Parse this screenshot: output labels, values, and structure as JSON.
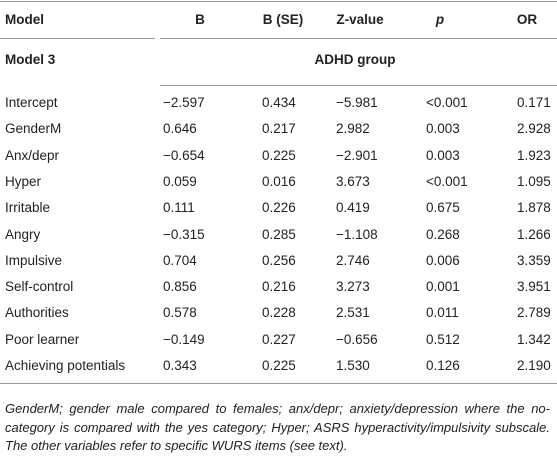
{
  "table": {
    "header": [
      "Model",
      "B",
      "B (SE)",
      "Z-value",
      "p",
      "OR"
    ],
    "model": "Model 3",
    "group": "ADHD group",
    "rows": [
      [
        "Intercept",
        "−2.597",
        "0.434",
        "−5.981",
        "<0.001",
        "0.171"
      ],
      [
        "GenderM",
        "0.646",
        "0.217",
        "2.982",
        "0.003",
        "2.928"
      ],
      [
        "Anx/depr",
        "−0.654",
        "0.225",
        "−2.901",
        "0.003",
        "1.923"
      ],
      [
        "Hyper",
        "0.059",
        "0.016",
        "3.673",
        "<0.001",
        "1.095"
      ],
      [
        "Irritable",
        "0.111",
        "0.226",
        "0.419",
        "0.675",
        "1.878"
      ],
      [
        "Angry",
        "−0.315",
        "0.285",
        "−1.108",
        "0.268",
        "1.266"
      ],
      [
        "Impulsive",
        "0.704",
        "0.256",
        "2.746",
        "0.006",
        "3.359"
      ],
      [
        "Self-control",
        "0.856",
        "0.216",
        "3.273",
        "0.001",
        "3.951"
      ],
      [
        "Authorities",
        "0.578",
        "0.228",
        "2.531",
        "0.011",
        "2.789"
      ],
      [
        "Poor learner",
        "−0.149",
        "0.227",
        "−0.656",
        "0.512",
        "1.342"
      ],
      [
        "Achieving potentials",
        "0.343",
        "0.225",
        "1.530",
        "0.126",
        "2.190"
      ]
    ],
    "footnote": "GenderM; gender male compared to females; anx/depr; anxiety/depression where the no-category is compared with the yes category; Hyper; ASRS hyperactivity/impulsivity subscale. The other variables refer to specific WURS items (see text)."
  }
}
